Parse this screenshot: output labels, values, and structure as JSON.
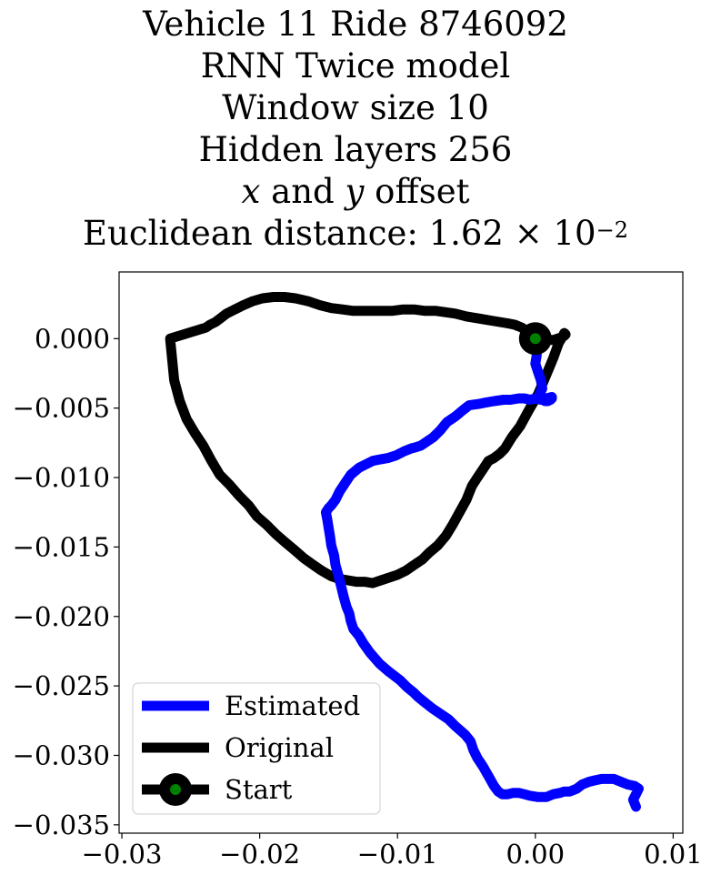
{
  "chart_data": {
    "type": "line",
    "title_lines": {
      "line1": "Vehicle 11 Ride 8746092",
      "line2": "RNN Twice model",
      "line3": "Window size 10",
      "line4": "Hidden layers 256",
      "line5_x": "x",
      "line5_and": " and ",
      "line5_y": "y",
      "line5_rest": " offset",
      "line6_prefix": "Euclidean distance: 1.62 × 10",
      "line6_exp": "−2"
    },
    "xlim": [
      -0.0302,
      0.0107
    ],
    "ylim": [
      -0.0356,
      0.0048
    ],
    "xticks": [
      -0.03,
      -0.02,
      -0.01,
      0.0,
      0.01
    ],
    "xtick_labels": [
      "−0.03",
      "−0.02",
      "−0.01",
      "0.00",
      "0.01"
    ],
    "yticks": [
      0.0,
      -0.005,
      -0.01,
      -0.015,
      -0.02,
      -0.025,
      -0.03,
      -0.035
    ],
    "ytick_labels": [
      "0.000",
      "−0.005",
      "−0.010",
      "−0.015",
      "−0.020",
      "−0.025",
      "−0.030",
      "−0.035"
    ],
    "grid": false,
    "legend_position": "lower-left",
    "series": [
      {
        "name": "Estimated",
        "color": "#0000ff",
        "x": [
          0.0,
          0.0001,
          0.0001,
          0.0,
          0.0002,
          0.0004,
          0.0005,
          0.0003,
          0.0006,
          0.0008,
          0.0007,
          0.0009,
          0.0011,
          0.0012,
          0.001,
          0.0012,
          0.0008,
          0.0004,
          0.0001,
          -0.0004,
          -0.0008,
          -0.0012,
          -0.0018,
          -0.0023,
          -0.003,
          -0.0036,
          -0.0041,
          -0.0048,
          -0.0052,
          -0.0058,
          -0.0064,
          -0.0069,
          -0.0074,
          -0.008,
          -0.0083,
          -0.0086,
          -0.009,
          -0.0095,
          -0.0101,
          -0.0107,
          -0.0113,
          -0.0118,
          -0.0122,
          -0.0128,
          -0.0134,
          -0.0138,
          -0.0142,
          -0.0145,
          -0.0148,
          -0.015,
          -0.0152,
          -0.0151,
          -0.015,
          -0.0149,
          -0.0148,
          -0.0146,
          -0.0145,
          -0.0143,
          -0.0141,
          -0.0139,
          -0.0137,
          -0.0135,
          -0.0134,
          -0.0132,
          -0.0128,
          -0.0125,
          -0.012,
          -0.0113,
          -0.0106,
          -0.0098,
          -0.0093,
          -0.0088,
          -0.0085,
          -0.008,
          -0.0075,
          -0.0069,
          -0.0063,
          -0.0058,
          -0.0051,
          -0.0047,
          -0.0045,
          -0.0042,
          -0.0038,
          -0.0034,
          -0.003,
          -0.0027,
          -0.0024,
          -0.002,
          -0.0016,
          -0.0012,
          -0.0008,
          -0.0004,
          0.0002,
          0.0008,
          0.0013,
          0.0018,
          0.0021,
          0.0025,
          0.003,
          0.0034,
          0.0039,
          0.0043,
          0.0048,
          0.0052,
          0.0057,
          0.0062,
          0.0067,
          0.0072,
          0.0075,
          0.0073,
          0.0071,
          0.0073
        ],
        "y": [
          0.0,
          -0.0006,
          -0.0012,
          -0.0018,
          -0.0024,
          -0.003,
          -0.0036,
          -0.004,
          -0.0043,
          -0.0044,
          -0.0045,
          -0.0045,
          -0.0044,
          -0.0043,
          -0.0043,
          -0.0042,
          -0.0043,
          -0.0044,
          -0.0043,
          -0.0044,
          -0.0043,
          -0.0043,
          -0.0044,
          -0.0044,
          -0.0045,
          -0.0046,
          -0.0047,
          -0.0048,
          -0.0051,
          -0.0056,
          -0.006,
          -0.0066,
          -0.0071,
          -0.0075,
          -0.0077,
          -0.0078,
          -0.0079,
          -0.0081,
          -0.0084,
          -0.0086,
          -0.0087,
          -0.0088,
          -0.009,
          -0.0093,
          -0.0098,
          -0.0104,
          -0.011,
          -0.0116,
          -0.012,
          -0.0122,
          -0.0125,
          -0.013,
          -0.0136,
          -0.0142,
          -0.0149,
          -0.0156,
          -0.0163,
          -0.017,
          -0.0178,
          -0.0186,
          -0.0193,
          -0.0198,
          -0.0203,
          -0.0209,
          -0.0214,
          -0.0219,
          -0.0226,
          -0.0234,
          -0.024,
          -0.0246,
          -0.0251,
          -0.0255,
          -0.0258,
          -0.0262,
          -0.0266,
          -0.027,
          -0.0274,
          -0.0279,
          -0.0285,
          -0.029,
          -0.0296,
          -0.0302,
          -0.0308,
          -0.0315,
          -0.0322,
          -0.0326,
          -0.0328,
          -0.0328,
          -0.0327,
          -0.0327,
          -0.0328,
          -0.0329,
          -0.033,
          -0.033,
          -0.0328,
          -0.0327,
          -0.0326,
          -0.0326,
          -0.0324,
          -0.0321,
          -0.0319,
          -0.0318,
          -0.0317,
          -0.0317,
          -0.0317,
          -0.0319,
          -0.0321,
          -0.0322,
          -0.0324,
          -0.0328,
          -0.0332,
          -0.0337
        ]
      },
      {
        "name": "Original",
        "color": "#000000",
        "x": [
          0.0,
          -0.0005,
          -0.001,
          -0.0015,
          -0.002,
          -0.0026,
          -0.0032,
          -0.0038,
          -0.0044,
          -0.005,
          -0.0058,
          -0.0065,
          -0.0072,
          -0.008,
          -0.0088,
          -0.0096,
          -0.0104,
          -0.0112,
          -0.0122,
          -0.0132,
          -0.014,
          -0.0148,
          -0.0156,
          -0.0165,
          -0.0174,
          -0.0182,
          -0.019,
          -0.0198,
          -0.0205,
          -0.0212,
          -0.0218,
          -0.0224,
          -0.0228,
          -0.0232,
          -0.0236,
          -0.0239,
          -0.0265,
          -0.0262,
          -0.0258,
          -0.0253,
          -0.0247,
          -0.0241,
          -0.0235,
          -0.0229,
          -0.0222,
          -0.0215,
          -0.0208,
          -0.0202,
          -0.0195,
          -0.0188,
          -0.0181,
          -0.0175,
          -0.0168,
          -0.0161,
          -0.0155,
          -0.0148,
          -0.0142,
          -0.0136,
          -0.013,
          -0.0124,
          -0.0118,
          -0.0112,
          -0.0106,
          -0.01,
          -0.0094,
          -0.0088,
          -0.0082,
          -0.0077,
          -0.0071,
          -0.0065,
          -0.006,
          -0.0055,
          -0.005,
          -0.0046,
          -0.0042,
          -0.0038,
          -0.0034,
          -0.003,
          -0.0026,
          -0.0022,
          -0.0017,
          -0.0011,
          -0.0005,
          0.0002,
          0.0008,
          0.0013,
          0.0017,
          0.002,
          0.0021,
          0.0022,
          0.0021,
          0.0019,
          0.0016,
          0.0013,
          0.001,
          0.0006,
          0.0003,
          0.0,
          -0.0002,
          0.0001,
          0.0004,
          0.0006
        ],
        "y": [
          0.0,
          0.0005,
          0.0008,
          0.001,
          0.0011,
          0.0012,
          0.0013,
          0.0014,
          0.0015,
          0.0016,
          0.0018,
          0.0019,
          0.002,
          0.002,
          0.0021,
          0.0021,
          0.002,
          0.002,
          0.002,
          0.002,
          0.0021,
          0.0022,
          0.0024,
          0.0027,
          0.0029,
          0.003,
          0.003,
          0.0029,
          0.0027,
          0.0024,
          0.0021,
          0.0018,
          0.0015,
          0.0012,
          0.001,
          0.0008,
          0.0,
          -0.003,
          -0.0045,
          -0.0058,
          -0.0068,
          -0.0077,
          -0.0088,
          -0.0098,
          -0.0105,
          -0.0113,
          -0.012,
          -0.0128,
          -0.0134,
          -0.0141,
          -0.0147,
          -0.0152,
          -0.0158,
          -0.0163,
          -0.0167,
          -0.0171,
          -0.0173,
          -0.0174,
          -0.0175,
          -0.0175,
          -0.0176,
          -0.0174,
          -0.0172,
          -0.017,
          -0.0167,
          -0.0163,
          -0.0159,
          -0.0154,
          -0.0149,
          -0.0142,
          -0.0134,
          -0.0125,
          -0.0116,
          -0.0106,
          -0.01,
          -0.0094,
          -0.0088,
          -0.0086,
          -0.0083,
          -0.0079,
          -0.0071,
          -0.0063,
          -0.0052,
          -0.004,
          -0.0026,
          -0.0014,
          -0.0003,
          0.0002,
          0.0004,
          0.0003,
          0.0002,
          0.0001,
          0.0,
          -0.0001,
          -0.0001,
          -0.0001,
          0.0,
          0.0,
          0.0,
          -0.0002,
          -0.0004,
          -0.0005
        ]
      },
      {
        "name": "Start",
        "color": "#000000",
        "marker_color": "#008000",
        "x": [
          0.0
        ],
        "y": [
          0.0
        ]
      }
    ]
  }
}
